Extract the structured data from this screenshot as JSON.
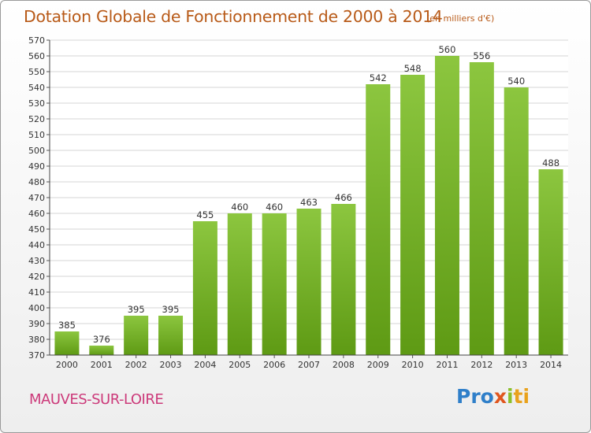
{
  "header": {
    "title": "Dotation Globale de Fonctionnement de 2000 à 2014",
    "subtitle": "(en milliers d'€)"
  },
  "footer": {
    "commune": "MAUVES-SUR-LOIRE",
    "logo": {
      "p1": "Pro",
      "p2": "x",
      "p3": "i",
      "p4": "ti"
    }
  },
  "colors": {
    "bar": "#8cc63f",
    "bar_dark": "#5e9a14",
    "title": "#b85a18",
    "commune": "#cc3a7a"
  },
  "chart_data": {
    "type": "bar",
    "title": "Dotation Globale de Fonctionnement de 2000 à 2014",
    "subtitle": "(en milliers d'€)",
    "xlabel": "",
    "ylabel": "",
    "categories": [
      "2000",
      "2001",
      "2002",
      "2003",
      "2004",
      "2005",
      "2006",
      "2007",
      "2008",
      "2009",
      "2010",
      "2011",
      "2012",
      "2013",
      "2014"
    ],
    "values": [
      385,
      376,
      395,
      395,
      455,
      460,
      460,
      463,
      466,
      542,
      548,
      560,
      556,
      540,
      488
    ],
    "ylim": [
      370,
      570
    ],
    "ytick_step": 10,
    "grid": true
  }
}
